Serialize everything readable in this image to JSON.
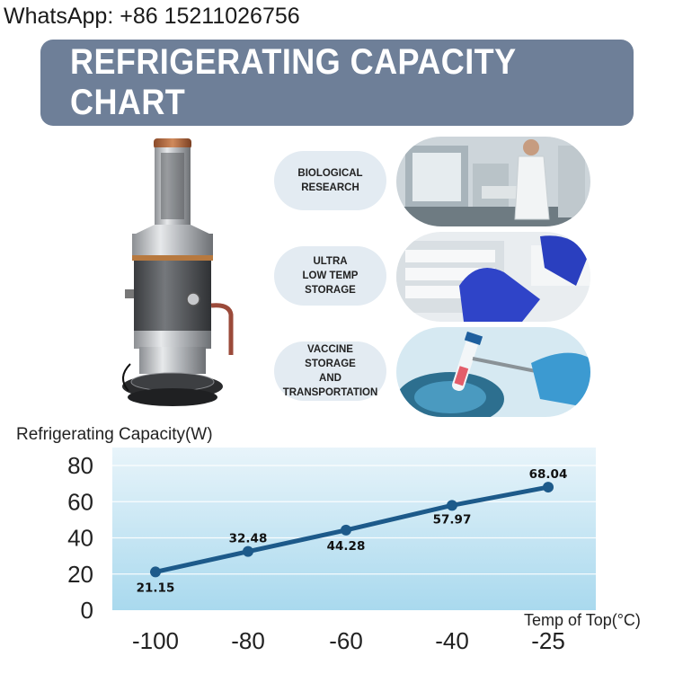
{
  "contact": {
    "whatsapp": "WhatsApp: +86 15211026756"
  },
  "banner": {
    "title": "REFRIGERATING CAPACITY CHART"
  },
  "applications": [
    {
      "label": "BIOLOGICAL\nRESEARCH",
      "icon": "lab-scientist-photo"
    },
    {
      "label": "ULTRA\nLOW TEMP\nSTORAGE",
      "icon": "gloved-hand-freezer-photo"
    },
    {
      "label": "VACCINE\nSTORAGE\nAND\nTRANSPORTATION",
      "icon": "vial-tweezers-photo"
    }
  ],
  "colors": {
    "banner": "#6e7f98",
    "line": "#1d5a8a",
    "plot_top": "#e8f4fa",
    "plot_bottom": "#a9d9ee",
    "pill": "#e3ebf2"
  },
  "chart_data": {
    "type": "line",
    "ylabel": "Refrigerating Capacity(W)",
    "xlabel": "Temp of Top(°C)",
    "x": [
      -100,
      -80,
      -60,
      -40,
      -25
    ],
    "xticks": [
      "-100",
      "-80",
      "-60",
      "-40",
      "-25"
    ],
    "yticks": [
      "0",
      "20",
      "40",
      "60",
      "80"
    ],
    "ylim": [
      0,
      80
    ],
    "series": [
      {
        "values": [
          21.15,
          32.48,
          44.28,
          57.97,
          68.04
        ],
        "labels": [
          "21.15",
          "32.48",
          "44.28",
          "57.97",
          "68.04"
        ]
      }
    ],
    "grid": true,
    "legend": "none"
  }
}
